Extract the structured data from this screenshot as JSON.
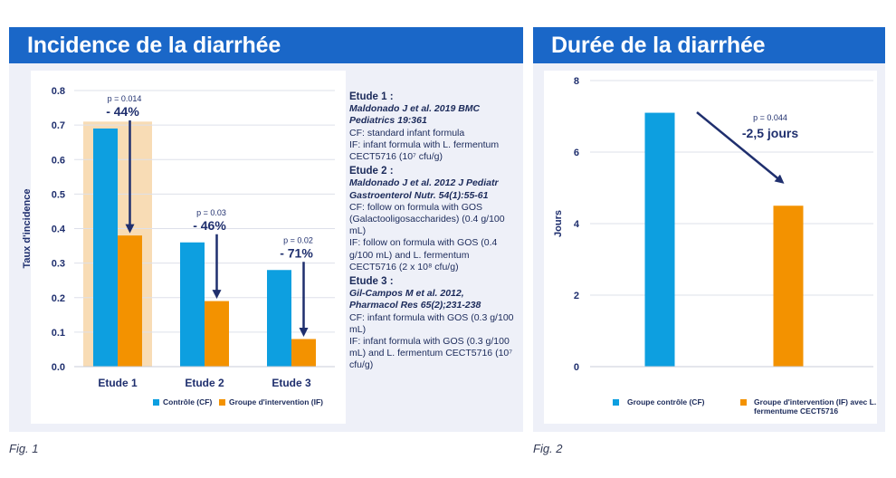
{
  "panel1": {
    "title": "Incidence de la diarrhée",
    "caption": "Fig. 1",
    "notes": [
      {
        "study": "Etude 1 :",
        "ref": "Maldonado J et al. 2019 BMC Pediatrics 19:361",
        "cf": "CF: standard infant formula",
        "if": "IF: infant formula with L. fermentum CECT5716 (10⁷ cfu/g)"
      },
      {
        "study": "Etude 2 :",
        "ref": "Maldonado J et al. 2012 J Pediatr Gastroenterol Nutr. 54(1):55-61",
        "cf": "CF: follow on formula with GOS (Galactooligosaccharides) (0.4 g/100 mL)",
        "if": "IF: follow on formula with GOS (0.4 g/100 mL) and L. fermentum CECT5716 (2 x 10⁸ cfu/g)"
      },
      {
        "study": "Etude 3 :",
        "ref": "Gil-Campos M et al. 2012, Pharmacol Res 65(2);231-238",
        "cf": "CF: infant formula with GOS (0.3 g/100 mL)",
        "if": "IF: infant formula with GOS (0.3 g/100 mL) and L. fermentum CECT5716 (10⁷ cfu/g)"
      }
    ]
  },
  "panel2": {
    "title": "Durée de la diarrhée",
    "caption": "Fig. 2"
  },
  "colors": {
    "header": "#1a67c8",
    "control": "#0d9fe0",
    "intervention": "#f39200",
    "highlight": "#f8dcb5",
    "arrow": "#1f2f6e"
  },
  "chart_data": [
    {
      "type": "bar",
      "title": "Incidence de la diarrhée",
      "xlabel": "",
      "ylabel": "Taux d'incidence",
      "ylim": [
        0,
        0.8
      ],
      "yticks": [
        "0.0",
        "0.1",
        "0.2",
        "0.3",
        "0.4",
        "0.5",
        "0.6",
        "0.7",
        "0.8"
      ],
      "categories": [
        "Etude 1",
        "Etude 2",
        "Etude 3"
      ],
      "series": [
        {
          "name": "Contrôle (CF)",
          "values": [
            0.69,
            0.36,
            0.28
          ]
        },
        {
          "name": "Groupe d'intervention (IF)",
          "values": [
            0.38,
            0.19,
            0.08
          ]
        }
      ],
      "annotations": [
        {
          "category": "Etude 1",
          "p": "p = 0.014",
          "change": "- 44%"
        },
        {
          "category": "Etude 2",
          "p": "p = 0.03",
          "change": "- 46%"
        },
        {
          "category": "Etude 3",
          "p": "p = 0.02",
          "change": "- 71%"
        }
      ],
      "highlight_category": "Etude 1",
      "legend": "bottom"
    },
    {
      "type": "bar",
      "title": "Durée de la diarrhée",
      "xlabel": "",
      "ylabel": "Jours",
      "ylim": [
        0,
        8
      ],
      "yticks": [
        "0",
        "2",
        "4",
        "6",
        "8"
      ],
      "categories": [
        "Groupe contrôle (CF)",
        "Groupe d'intervention (IF) avec L. fermentume CECT5716"
      ],
      "values": [
        7.1,
        4.5
      ],
      "annotations": [
        {
          "p": "p = 0.044",
          "change": "-2,5 jours"
        }
      ],
      "legend": "bottom"
    }
  ]
}
